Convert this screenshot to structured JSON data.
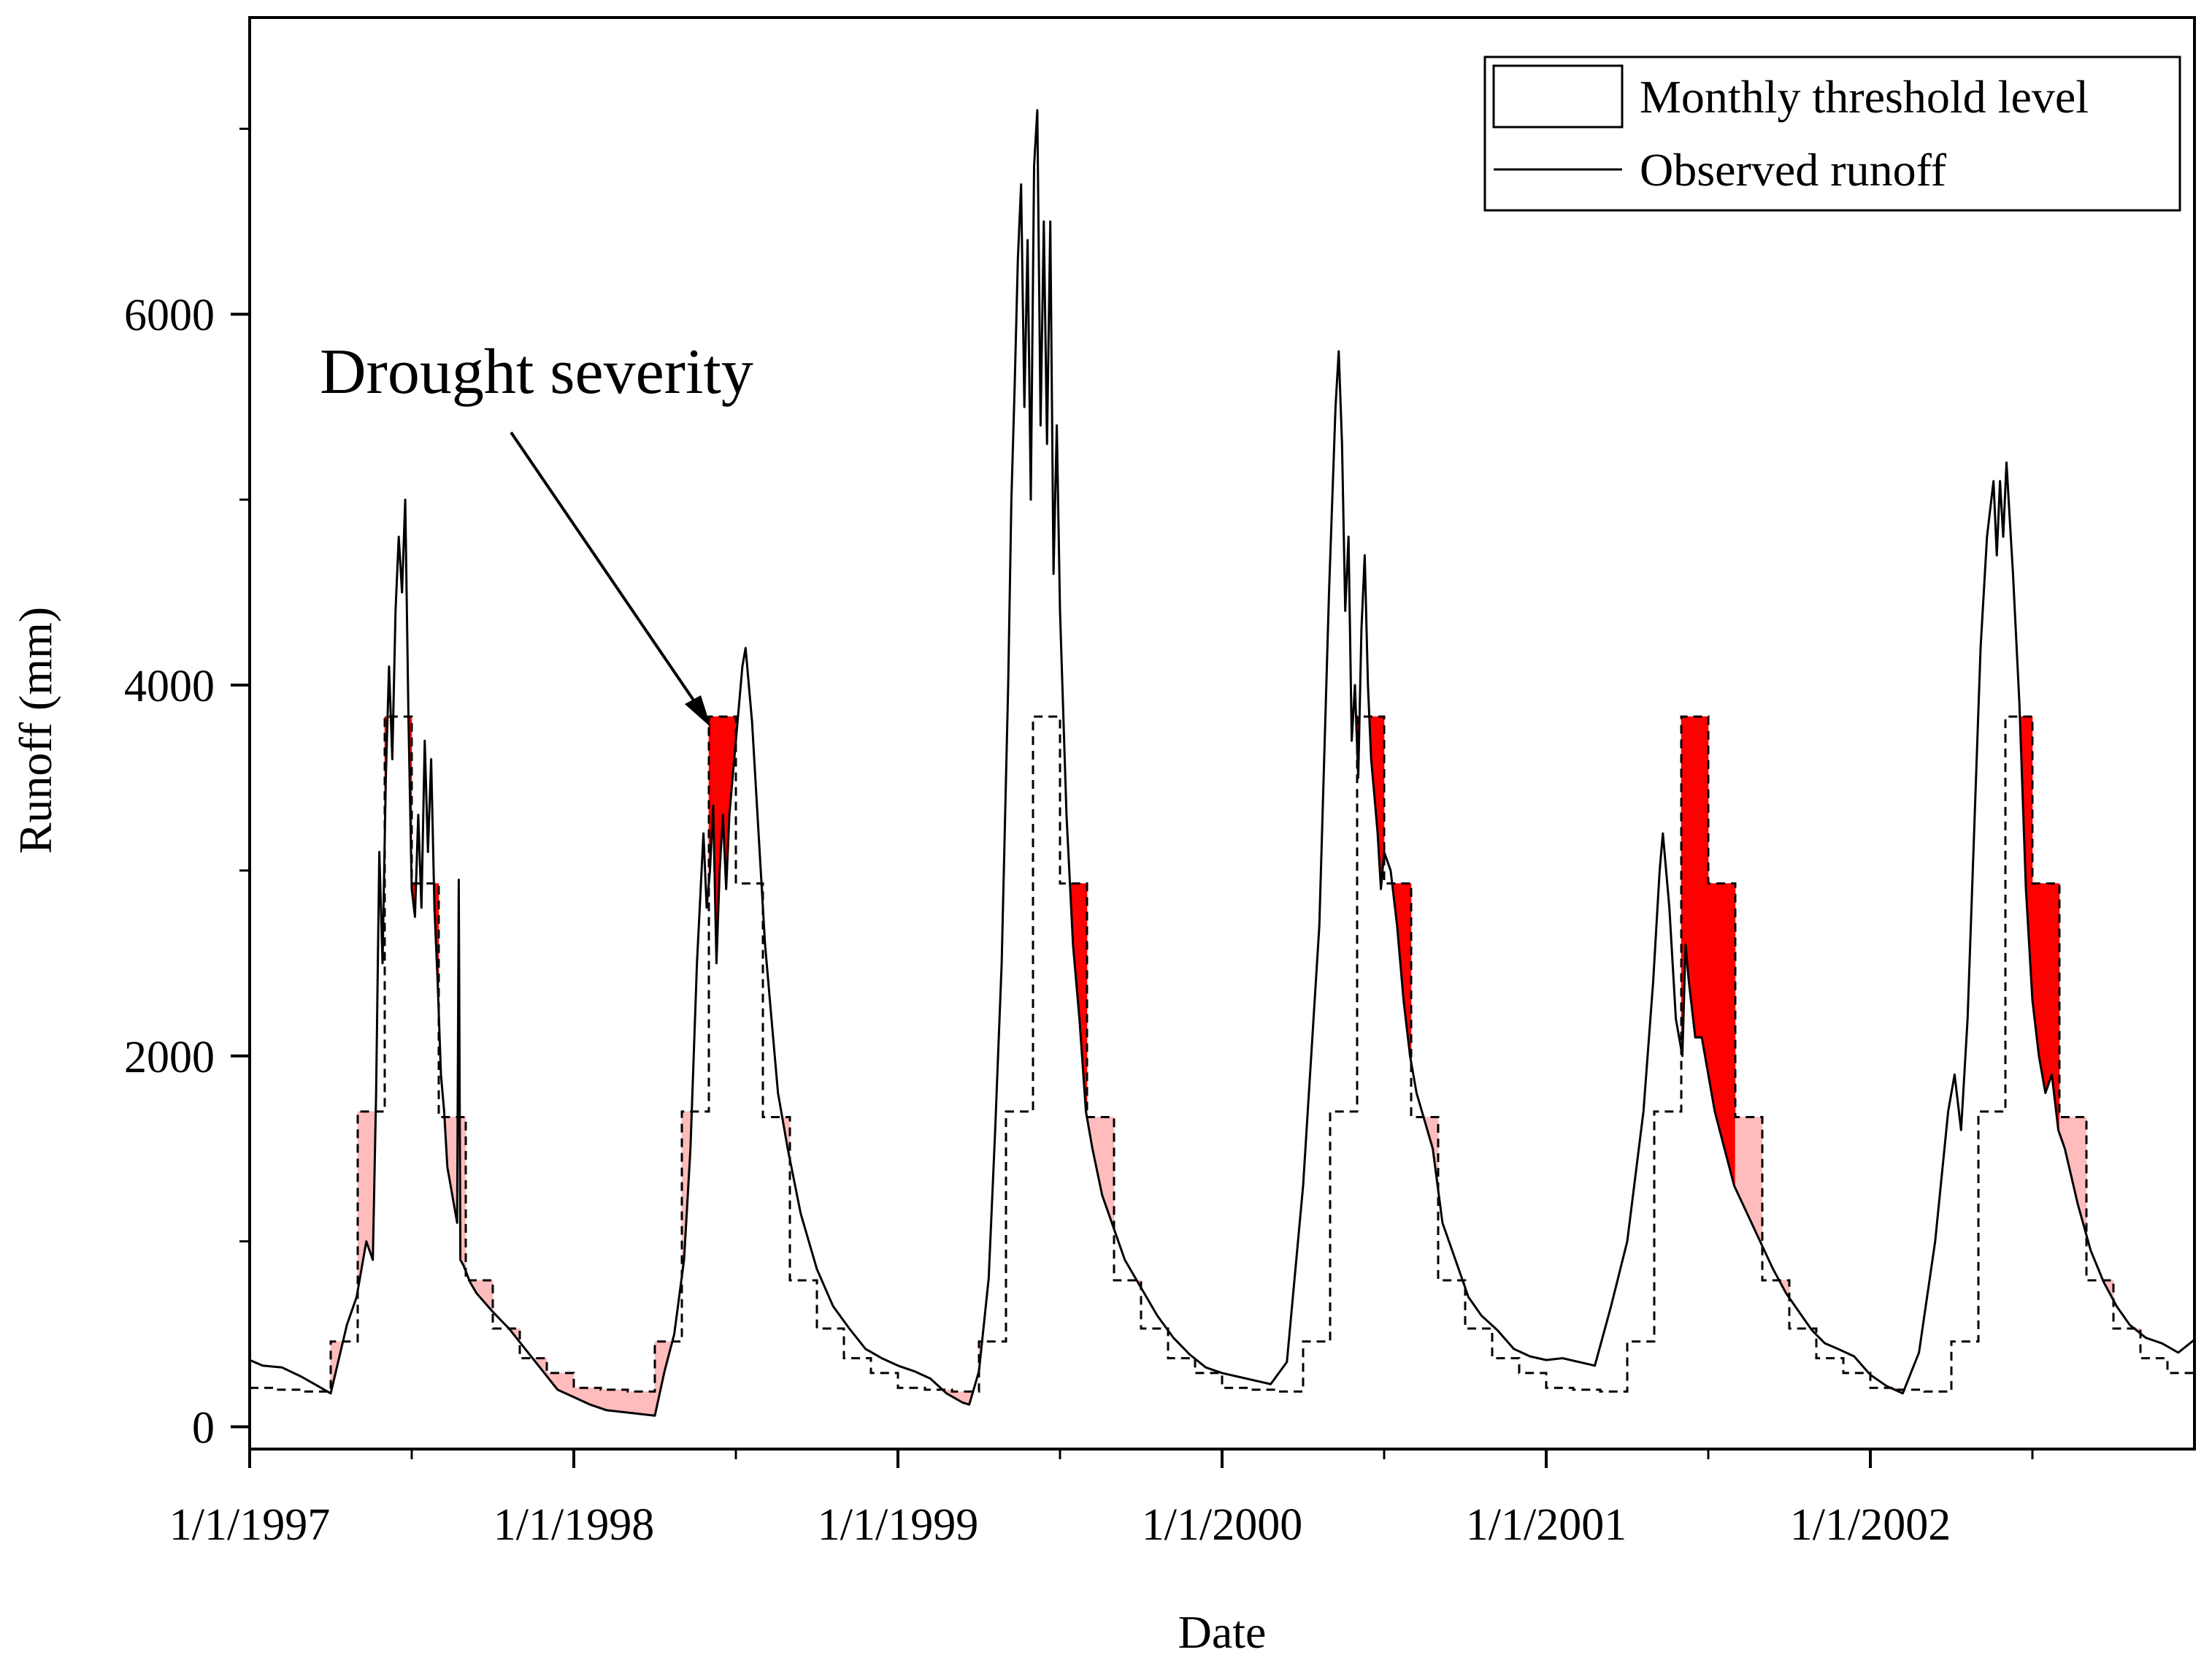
{
  "chart_data": {
    "type": "line",
    "title": "",
    "xlabel": "Date",
    "ylabel": "Runoff (mm)",
    "xlim": [
      1997.0,
      2003.0
    ],
    "ylim": [
      -120,
      7600
    ],
    "x_ticks": [
      {
        "value": 1997,
        "label": "1/1/1997"
      },
      {
        "value": 1998,
        "label": "1/1/1998"
      },
      {
        "value": 1999,
        "label": "1/1/1999"
      },
      {
        "value": 2000,
        "label": "1/1/2000"
      },
      {
        "value": 2001,
        "label": "1/1/2001"
      },
      {
        "value": 2002,
        "label": "1/1/2002"
      }
    ],
    "y_ticks": [
      {
        "value": 0,
        "label": "0"
      },
      {
        "value": 2000,
        "label": "2000"
      },
      {
        "value": 4000,
        "label": "4000"
      },
      {
        "value": 6000,
        "label": "6000"
      }
    ],
    "y_minor_ticks": [
      1000,
      3000,
      5000,
      7000
    ],
    "legend": {
      "position": "top-right",
      "entries": [
        {
          "label": "Monthly threshold level",
          "symbol": "box"
        },
        {
          "label": "Observed runoff",
          "symbol": "line"
        }
      ]
    },
    "annotation": {
      "text": "Drought severity",
      "points_to": {
        "x": 1998.43,
        "y": 3800
      }
    },
    "colors": {
      "observed": "#000000",
      "threshold": "#000000",
      "deficit_dark": "#ff0000",
      "deficit_light": "#ffbcbc"
    },
    "threshold_monthly": [
      210,
      200,
      190,
      460,
      1700,
      3830,
      2930,
      1670,
      790,
      530,
      370,
      290
    ],
    "series": [
      {
        "name": "Observed runoff",
        "points": [
          [
            1997.0,
            360
          ],
          [
            1997.04,
            330
          ],
          [
            1997.1,
            320
          ],
          [
            1997.16,
            270
          ],
          [
            1997.2,
            230
          ],
          [
            1997.25,
            180
          ],
          [
            1997.3,
            550
          ],
          [
            1997.33,
            700
          ],
          [
            1997.36,
            1000
          ],
          [
            1997.38,
            900
          ],
          [
            1997.39,
            1800
          ],
          [
            1997.4,
            3100
          ],
          [
            1997.41,
            2500
          ],
          [
            1997.42,
            3500
          ],
          [
            1997.43,
            4100
          ],
          [
            1997.44,
            3600
          ],
          [
            1997.45,
            4400
          ],
          [
            1997.46,
            4800
          ],
          [
            1997.47,
            4500
          ],
          [
            1997.48,
            5000
          ],
          [
            1997.49,
            3800
          ],
          [
            1997.5,
            2900
          ],
          [
            1997.51,
            2750
          ],
          [
            1997.52,
            3300
          ],
          [
            1997.53,
            2800
          ],
          [
            1997.54,
            3700
          ],
          [
            1997.55,
            3100
          ],
          [
            1997.56,
            3600
          ],
          [
            1997.57,
            2800
          ],
          [
            1997.58,
            2400
          ],
          [
            1997.59,
            1900
          ],
          [
            1997.6,
            1700
          ],
          [
            1997.61,
            1400
          ],
          [
            1997.62,
            1300
          ],
          [
            1997.63,
            1200
          ],
          [
            1997.64,
            1100
          ],
          [
            1997.645,
            2950
          ],
          [
            1997.65,
            900
          ],
          [
            1997.66,
            870
          ],
          [
            1997.68,
            780
          ],
          [
            1997.7,
            720
          ],
          [
            1997.75,
            620
          ],
          [
            1997.8,
            530
          ],
          [
            1997.85,
            420
          ],
          [
            1997.9,
            310
          ],
          [
            1997.95,
            200
          ],
          [
            1998.0,
            160
          ],
          [
            1998.05,
            120
          ],
          [
            1998.1,
            90
          ],
          [
            1998.15,
            80
          ],
          [
            1998.2,
            70
          ],
          [
            1998.25,
            60
          ],
          [
            1998.28,
            300
          ],
          [
            1998.31,
            500
          ],
          [
            1998.34,
            900
          ],
          [
            1998.36,
            1500
          ],
          [
            1998.38,
            2500
          ],
          [
            1998.4,
            3200
          ],
          [
            1998.41,
            2800
          ],
          [
            1998.42,
            3000
          ],
          [
            1998.43,
            3350
          ],
          [
            1998.44,
            2500
          ],
          [
            1998.45,
            3000
          ],
          [
            1998.46,
            3300
          ],
          [
            1998.47,
            2900
          ],
          [
            1998.48,
            3300
          ],
          [
            1998.5,
            3700
          ],
          [
            1998.52,
            4100
          ],
          [
            1998.53,
            4200
          ],
          [
            1998.55,
            3800
          ],
          [
            1998.57,
            3200
          ],
          [
            1998.59,
            2600
          ],
          [
            1998.61,
            2200
          ],
          [
            1998.63,
            1800
          ],
          [
            1998.66,
            1500
          ],
          [
            1998.7,
            1150
          ],
          [
            1998.75,
            850
          ],
          [
            1998.8,
            650
          ],
          [
            1998.85,
            530
          ],
          [
            1998.9,
            420
          ],
          [
            1998.95,
            370
          ],
          [
            1999.0,
            330
          ],
          [
            1999.05,
            300
          ],
          [
            1999.1,
            260
          ],
          [
            1999.15,
            180
          ],
          [
            1999.2,
            130
          ],
          [
            1999.22,
            120
          ],
          [
            1999.25,
            300
          ],
          [
            1999.28,
            800
          ],
          [
            1999.3,
            1600
          ],
          [
            1999.32,
            2500
          ],
          [
            1999.34,
            4000
          ],
          [
            1999.35,
            5000
          ],
          [
            1999.36,
            5600
          ],
          [
            1999.37,
            6300
          ],
          [
            1999.38,
            6700
          ],
          [
            1999.39,
            5500
          ],
          [
            1999.4,
            6400
          ],
          [
            1999.41,
            5000
          ],
          [
            1999.42,
            6800
          ],
          [
            1999.43,
            7100
          ],
          [
            1999.44,
            5400
          ],
          [
            1999.45,
            6500
          ],
          [
            1999.46,
            5300
          ],
          [
            1999.47,
            6500
          ],
          [
            1999.48,
            4600
          ],
          [
            1999.49,
            5400
          ],
          [
            1999.5,
            4400
          ],
          [
            1999.52,
            3300
          ],
          [
            1999.54,
            2600
          ],
          [
            1999.56,
            2200
          ],
          [
            1999.58,
            1700
          ],
          [
            1999.6,
            1500
          ],
          [
            1999.63,
            1250
          ],
          [
            1999.66,
            1100
          ],
          [
            1999.7,
            900
          ],
          [
            1999.75,
            750
          ],
          [
            1999.8,
            600
          ],
          [
            1999.85,
            480
          ],
          [
            1999.9,
            390
          ],
          [
            1999.95,
            320
          ],
          [
            2000.0,
            290
          ],
          [
            2000.05,
            270
          ],
          [
            2000.1,
            250
          ],
          [
            2000.15,
            230
          ],
          [
            2000.2,
            350
          ],
          [
            2000.25,
            1300
          ],
          [
            2000.3,
            2700
          ],
          [
            2000.33,
            4500
          ],
          [
            2000.35,
            5500
          ],
          [
            2000.36,
            5800
          ],
          [
            2000.37,
            5300
          ],
          [
            2000.38,
            4400
          ],
          [
            2000.39,
            4800
          ],
          [
            2000.4,
            3700
          ],
          [
            2000.41,
            4000
          ],
          [
            2000.42,
            3500
          ],
          [
            2000.43,
            4300
          ],
          [
            2000.44,
            4700
          ],
          [
            2000.45,
            4000
          ],
          [
            2000.46,
            3600
          ],
          [
            2000.47,
            3400
          ],
          [
            2000.48,
            3200
          ],
          [
            2000.49,
            2900
          ],
          [
            2000.5,
            3100
          ],
          [
            2000.52,
            3000
          ],
          [
            2000.54,
            2700
          ],
          [
            2000.56,
            2300
          ],
          [
            2000.58,
            2000
          ],
          [
            2000.6,
            1800
          ],
          [
            2000.65,
            1500
          ],
          [
            2000.68,
            1100
          ],
          [
            2000.72,
            900
          ],
          [
            2000.76,
            700
          ],
          [
            2000.8,
            600
          ],
          [
            2000.85,
            520
          ],
          [
            2000.9,
            420
          ],
          [
            2000.95,
            380
          ],
          [
            2001.0,
            360
          ],
          [
            2001.05,
            370
          ],
          [
            2001.1,
            350
          ],
          [
            2001.15,
            330
          ],
          [
            2001.2,
            650
          ],
          [
            2001.25,
            1000
          ],
          [
            2001.3,
            1700
          ],
          [
            2001.33,
            2400
          ],
          [
            2001.35,
            3000
          ],
          [
            2001.36,
            3200
          ],
          [
            2001.38,
            2800
          ],
          [
            2001.4,
            2200
          ],
          [
            2001.42,
            2000
          ],
          [
            2001.43,
            2600
          ],
          [
            2001.44,
            2400
          ],
          [
            2001.46,
            2100
          ],
          [
            2001.48,
            2100
          ],
          [
            2001.5,
            1900
          ],
          [
            2001.52,
            1700
          ],
          [
            2001.55,
            1500
          ],
          [
            2001.58,
            1300
          ],
          [
            2001.62,
            1150
          ],
          [
            2001.66,
            1000
          ],
          [
            2001.7,
            850
          ],
          [
            2001.74,
            720
          ],
          [
            2001.78,
            620
          ],
          [
            2001.82,
            520
          ],
          [
            2001.86,
            450
          ],
          [
            2001.9,
            420
          ],
          [
            2001.95,
            380
          ],
          [
            2002.0,
            280
          ],
          [
            2002.05,
            220
          ],
          [
            2002.1,
            180
          ],
          [
            2002.15,
            400
          ],
          [
            2002.2,
            1000
          ],
          [
            2002.24,
            1700
          ],
          [
            2002.26,
            1900
          ],
          [
            2002.28,
            1600
          ],
          [
            2002.3,
            2200
          ],
          [
            2002.32,
            3200
          ],
          [
            2002.34,
            4200
          ],
          [
            2002.36,
            4800
          ],
          [
            2002.38,
            5100
          ],
          [
            2002.39,
            4700
          ],
          [
            2002.4,
            5100
          ],
          [
            2002.41,
            4800
          ],
          [
            2002.42,
            5200
          ],
          [
            2002.43,
            4900
          ],
          [
            2002.44,
            4600
          ],
          [
            2002.46,
            3900
          ],
          [
            2002.48,
            2900
          ],
          [
            2002.5,
            2300
          ],
          [
            2002.52,
            2000
          ],
          [
            2002.54,
            1800
          ],
          [
            2002.56,
            1900
          ],
          [
            2002.58,
            1600
          ],
          [
            2002.6,
            1500
          ],
          [
            2002.64,
            1200
          ],
          [
            2002.68,
            950
          ],
          [
            2002.72,
            780
          ],
          [
            2002.76,
            650
          ],
          [
            2002.8,
            550
          ],
          [
            2002.85,
            480
          ],
          [
            2002.9,
            450
          ],
          [
            2002.95,
            400
          ],
          [
            2003.0,
            470
          ]
        ]
      }
    ]
  }
}
